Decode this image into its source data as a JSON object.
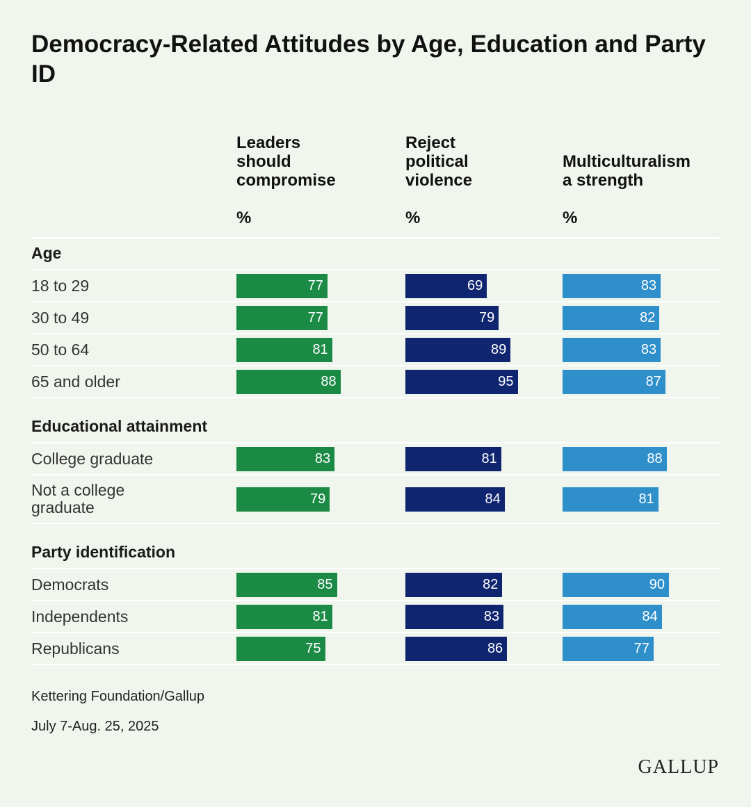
{
  "title": "Democracy-Related Attitudes by Age, Education and Party ID",
  "chart_data": {
    "type": "bar",
    "orientation": "horizontal",
    "xlim": [
      0,
      100
    ],
    "unit_label": "%",
    "series": [
      {
        "key": "compromise",
        "name": "Leaders should compromise",
        "color": "#1a8a45"
      },
      {
        "key": "violence",
        "name": "Reject political violence",
        "color": "#0f2570"
      },
      {
        "key": "multi",
        "name": "Multiculturalism a strength",
        "color": "#2e8fcb"
      }
    ],
    "groups": [
      {
        "name": "Age",
        "rows": [
          {
            "label": "18 to 29",
            "values": [
              77,
              69,
              83
            ]
          },
          {
            "label": "30 to 49",
            "values": [
              77,
              79,
              82
            ]
          },
          {
            "label": "50 to 64",
            "values": [
              81,
              89,
              83
            ]
          },
          {
            "label": "65 and older",
            "values": [
              88,
              95,
              87
            ]
          }
        ]
      },
      {
        "name": "Educational attainment",
        "rows": [
          {
            "label": "College graduate",
            "values": [
              83,
              81,
              88
            ]
          },
          {
            "label": "Not a college graduate",
            "values": [
              79,
              84,
              81
            ]
          }
        ]
      },
      {
        "name": "Party identification",
        "rows": [
          {
            "label": "Democrats",
            "values": [
              85,
              82,
              90
            ]
          },
          {
            "label": "Independents",
            "values": [
              81,
              83,
              84
            ]
          },
          {
            "label": "Republicans",
            "values": [
              75,
              86,
              77
            ]
          }
        ]
      }
    ]
  },
  "source": "Kettering Foundation/Gallup",
  "date": "July 7-Aug. 25, 2025",
  "brand": "GALLUP"
}
